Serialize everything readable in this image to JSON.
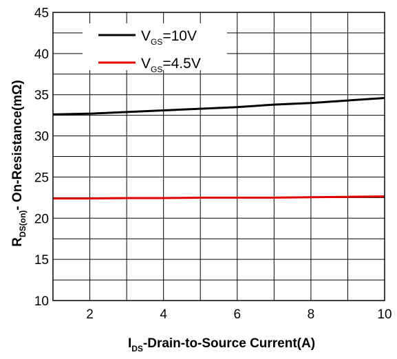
{
  "chart_data": {
    "type": "line",
    "xlabel": {
      "main": "I",
      "sub": "DS",
      "rest": "-Drain-to-Source Current(A)"
    },
    "ylabel": {
      "main": "R",
      "sub": "DS(on)",
      "rest": "- On-Resistance(mΩ)"
    },
    "xlim": [
      1,
      10
    ],
    "ylim": [
      10,
      45
    ],
    "xticks": [
      2,
      4,
      6,
      8,
      10
    ],
    "yticks": [
      10,
      15,
      20,
      25,
      30,
      35,
      40,
      45
    ],
    "x_minor_step": 1,
    "y_minor_step": 2.5,
    "grid": true,
    "legend_position": "top-left",
    "series": [
      {
        "label": {
          "main": "V",
          "sub": "GS",
          "rest": "=10V"
        },
        "color": "#000000",
        "x": [
          1,
          2,
          3,
          4,
          5,
          6,
          7,
          8,
          9,
          10
        ],
        "y": [
          32.6,
          32.7,
          32.9,
          33.1,
          33.3,
          33.5,
          33.8,
          34.0,
          34.3,
          34.6
        ]
      },
      {
        "label": {
          "main": "V",
          "sub": "GS",
          "rest": "=4.5V"
        },
        "color": "#e00000",
        "x": [
          1,
          2,
          3,
          4,
          5,
          6,
          7,
          8,
          9,
          10
        ],
        "y": [
          22.4,
          22.4,
          22.45,
          22.45,
          22.5,
          22.5,
          22.5,
          22.55,
          22.6,
          22.65
        ]
      }
    ]
  }
}
